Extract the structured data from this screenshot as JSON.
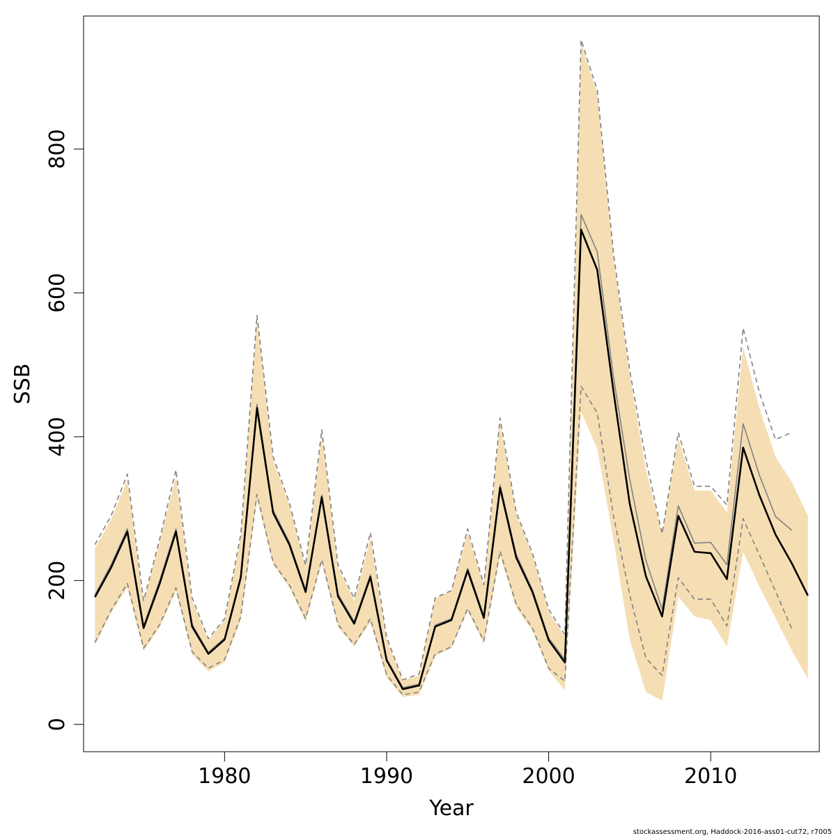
{
  "chart_data": {
    "type": "line",
    "xlabel": "Year",
    "ylabel": "SSB",
    "xlim": [
      1971.3,
      2016.7
    ],
    "ylim": [
      -38,
      985
    ],
    "x_ticks": [
      1980,
      1990,
      2000,
      2010
    ],
    "y_ticks": [
      0,
      200,
      400,
      600,
      800
    ],
    "x_tick_labels": [
      "1980",
      "1990",
      "2000",
      "2010"
    ],
    "y_tick_labels": [
      "0",
      "200",
      "400",
      "600",
      "800"
    ],
    "grid": false,
    "legend": "none",
    "band_color": "#f5deb3",
    "band": {
      "years": [
        1972,
        1973,
        1974,
        1975,
        1976,
        1977,
        1978,
        1979,
        1980,
        1981,
        1982,
        1983,
        1984,
        1985,
        1986,
        1987,
        1988,
        1989,
        1990,
        1991,
        1992,
        1993,
        1994,
        1995,
        1996,
        1997,
        1998,
        1999,
        2000,
        2001,
        2002,
        2003,
        2004,
        2005,
        2006,
        2007,
        2008,
        2009,
        2010,
        2011,
        2012,
        2013,
        2014,
        2015,
        2016
      ],
      "lower": [
        110,
        155,
        190,
        102,
        135,
        185,
        97,
        74,
        86,
        145,
        313,
        222,
        190,
        143,
        225,
        135,
        108,
        142,
        65,
        38,
        41,
        95,
        106,
        158,
        112,
        234,
        162,
        130,
        75,
        47,
        435,
        383,
        257,
        118,
        45,
        33,
        178,
        150,
        145,
        108,
        240,
        192,
        148,
        103,
        63
      ],
      "upper": [
        245,
        285,
        340,
        170,
        255,
        345,
        172,
        117,
        145,
        260,
        565,
        368,
        305,
        218,
        405,
        219,
        172,
        260,
        118,
        61,
        68,
        175,
        186,
        267,
        193,
        420,
        293,
        235,
        157,
        122,
        948,
        877,
        650,
        485,
        355,
        265,
        398,
        325,
        325,
        295,
        525,
        440,
        372,
        337,
        290
      ]
    },
    "series": [
      {
        "values": [
          177,
          218,
          268,
          134,
          196,
          268,
          136,
          98,
          118,
          204,
          440,
          294,
          250,
          184,
          316,
          178,
          140,
          205,
          89,
          49,
          54,
          136,
          145,
          214,
          148,
          329,
          232,
          184,
          117,
          86,
          688,
          632,
          463,
          307,
          206,
          150,
          290,
          240,
          238,
          202,
          385,
          319,
          264,
          224,
          179
        ],
        "color": "#000000",
        "style": "solid"
      },
      {
        "years": [
          1972,
          1973,
          1974,
          1975,
          1976,
          1977,
          1978,
          1979,
          1980,
          1981,
          1982,
          1983,
          1984,
          1985,
          1986,
          1987,
          1988,
          1989,
          1990,
          1991,
          1992,
          1993,
          1994,
          1995,
          1996,
          1997,
          1998,
          1999,
          2000,
          2001,
          2002,
          2003,
          2004,
          2005,
          2006,
          2007,
          2008,
          2009,
          2010,
          2011,
          2012,
          2013,
          2014,
          2015
        ],
        "values": [
          180,
          222,
          272,
          137,
          200,
          272,
          139,
          100,
          120,
          207,
          445,
          298,
          253,
          187,
          319,
          181,
          143,
          208,
          91,
          51,
          56,
          138,
          147,
          217,
          151,
          333,
          236,
          187,
          120,
          90,
          709,
          657,
          483,
          341,
          228,
          160,
          304,
          252,
          253,
          222,
          418,
          347,
          289,
          270
        ],
        "color": "#808080",
        "style": "solid"
      },
      {
        "years": [
          1972,
          1973,
          1974,
          1975,
          1976,
          1977,
          1978,
          1979,
          1980,
          1981,
          1982,
          1983,
          1984,
          1985,
          1986,
          1987,
          1988,
          1989,
          1990,
          1991,
          1992,
          1993,
          1994,
          1995,
          1996,
          1997,
          1998,
          1999,
          2000,
          2001,
          2002,
          2003,
          2004,
          2005,
          2006,
          2007,
          2008,
          2009,
          2010,
          2011,
          2012,
          2013,
          2014,
          2015
        ],
        "values": [
          250,
          290,
          348,
          172,
          258,
          354,
          176,
          119,
          147,
          264,
          569,
          372,
          308,
          221,
          410,
          222,
          175,
          267,
          121,
          62,
          70,
          176,
          186,
          272,
          194,
          426,
          295,
          238,
          160,
          125,
          952,
          882,
          655,
          492,
          368,
          265,
          406,
          331,
          331,
          305,
          551,
          462,
          396,
          406
        ],
        "color": "#808080",
        "style": "dashed"
      },
      {
        "years": [
          1972,
          1973,
          1974,
          1975,
          1976,
          1977,
          1978,
          1979,
          1980,
          1981,
          1982,
          1983,
          1984,
          1985,
          1986,
          1987,
          1988,
          1989,
          1990,
          1991,
          1992,
          1993,
          1994,
          1995,
          1996,
          1997,
          1998,
          1999,
          2000,
          2001,
          2002,
          2003,
          2004,
          2005,
          2006,
          2007,
          2008,
          2009,
          2010,
          2011,
          2012,
          2013,
          2014,
          2015
        ],
        "values": [
          114,
          159,
          196,
          106,
          139,
          190,
          101,
          78,
          90,
          150,
          320,
          225,
          194,
          147,
          229,
          139,
          111,
          147,
          69,
          41,
          45,
          98,
          108,
          161,
          116,
          241,
          167,
          134,
          78,
          60,
          470,
          433,
          290,
          180,
          92,
          68,
          204,
          174,
          174,
          137,
          286,
          236,
          185,
          133
        ],
        "color": "#808080",
        "style": "dashed"
      }
    ]
  },
  "footer": "stockassessment.org, Haddock-2016-ass01-cut72, r7005"
}
